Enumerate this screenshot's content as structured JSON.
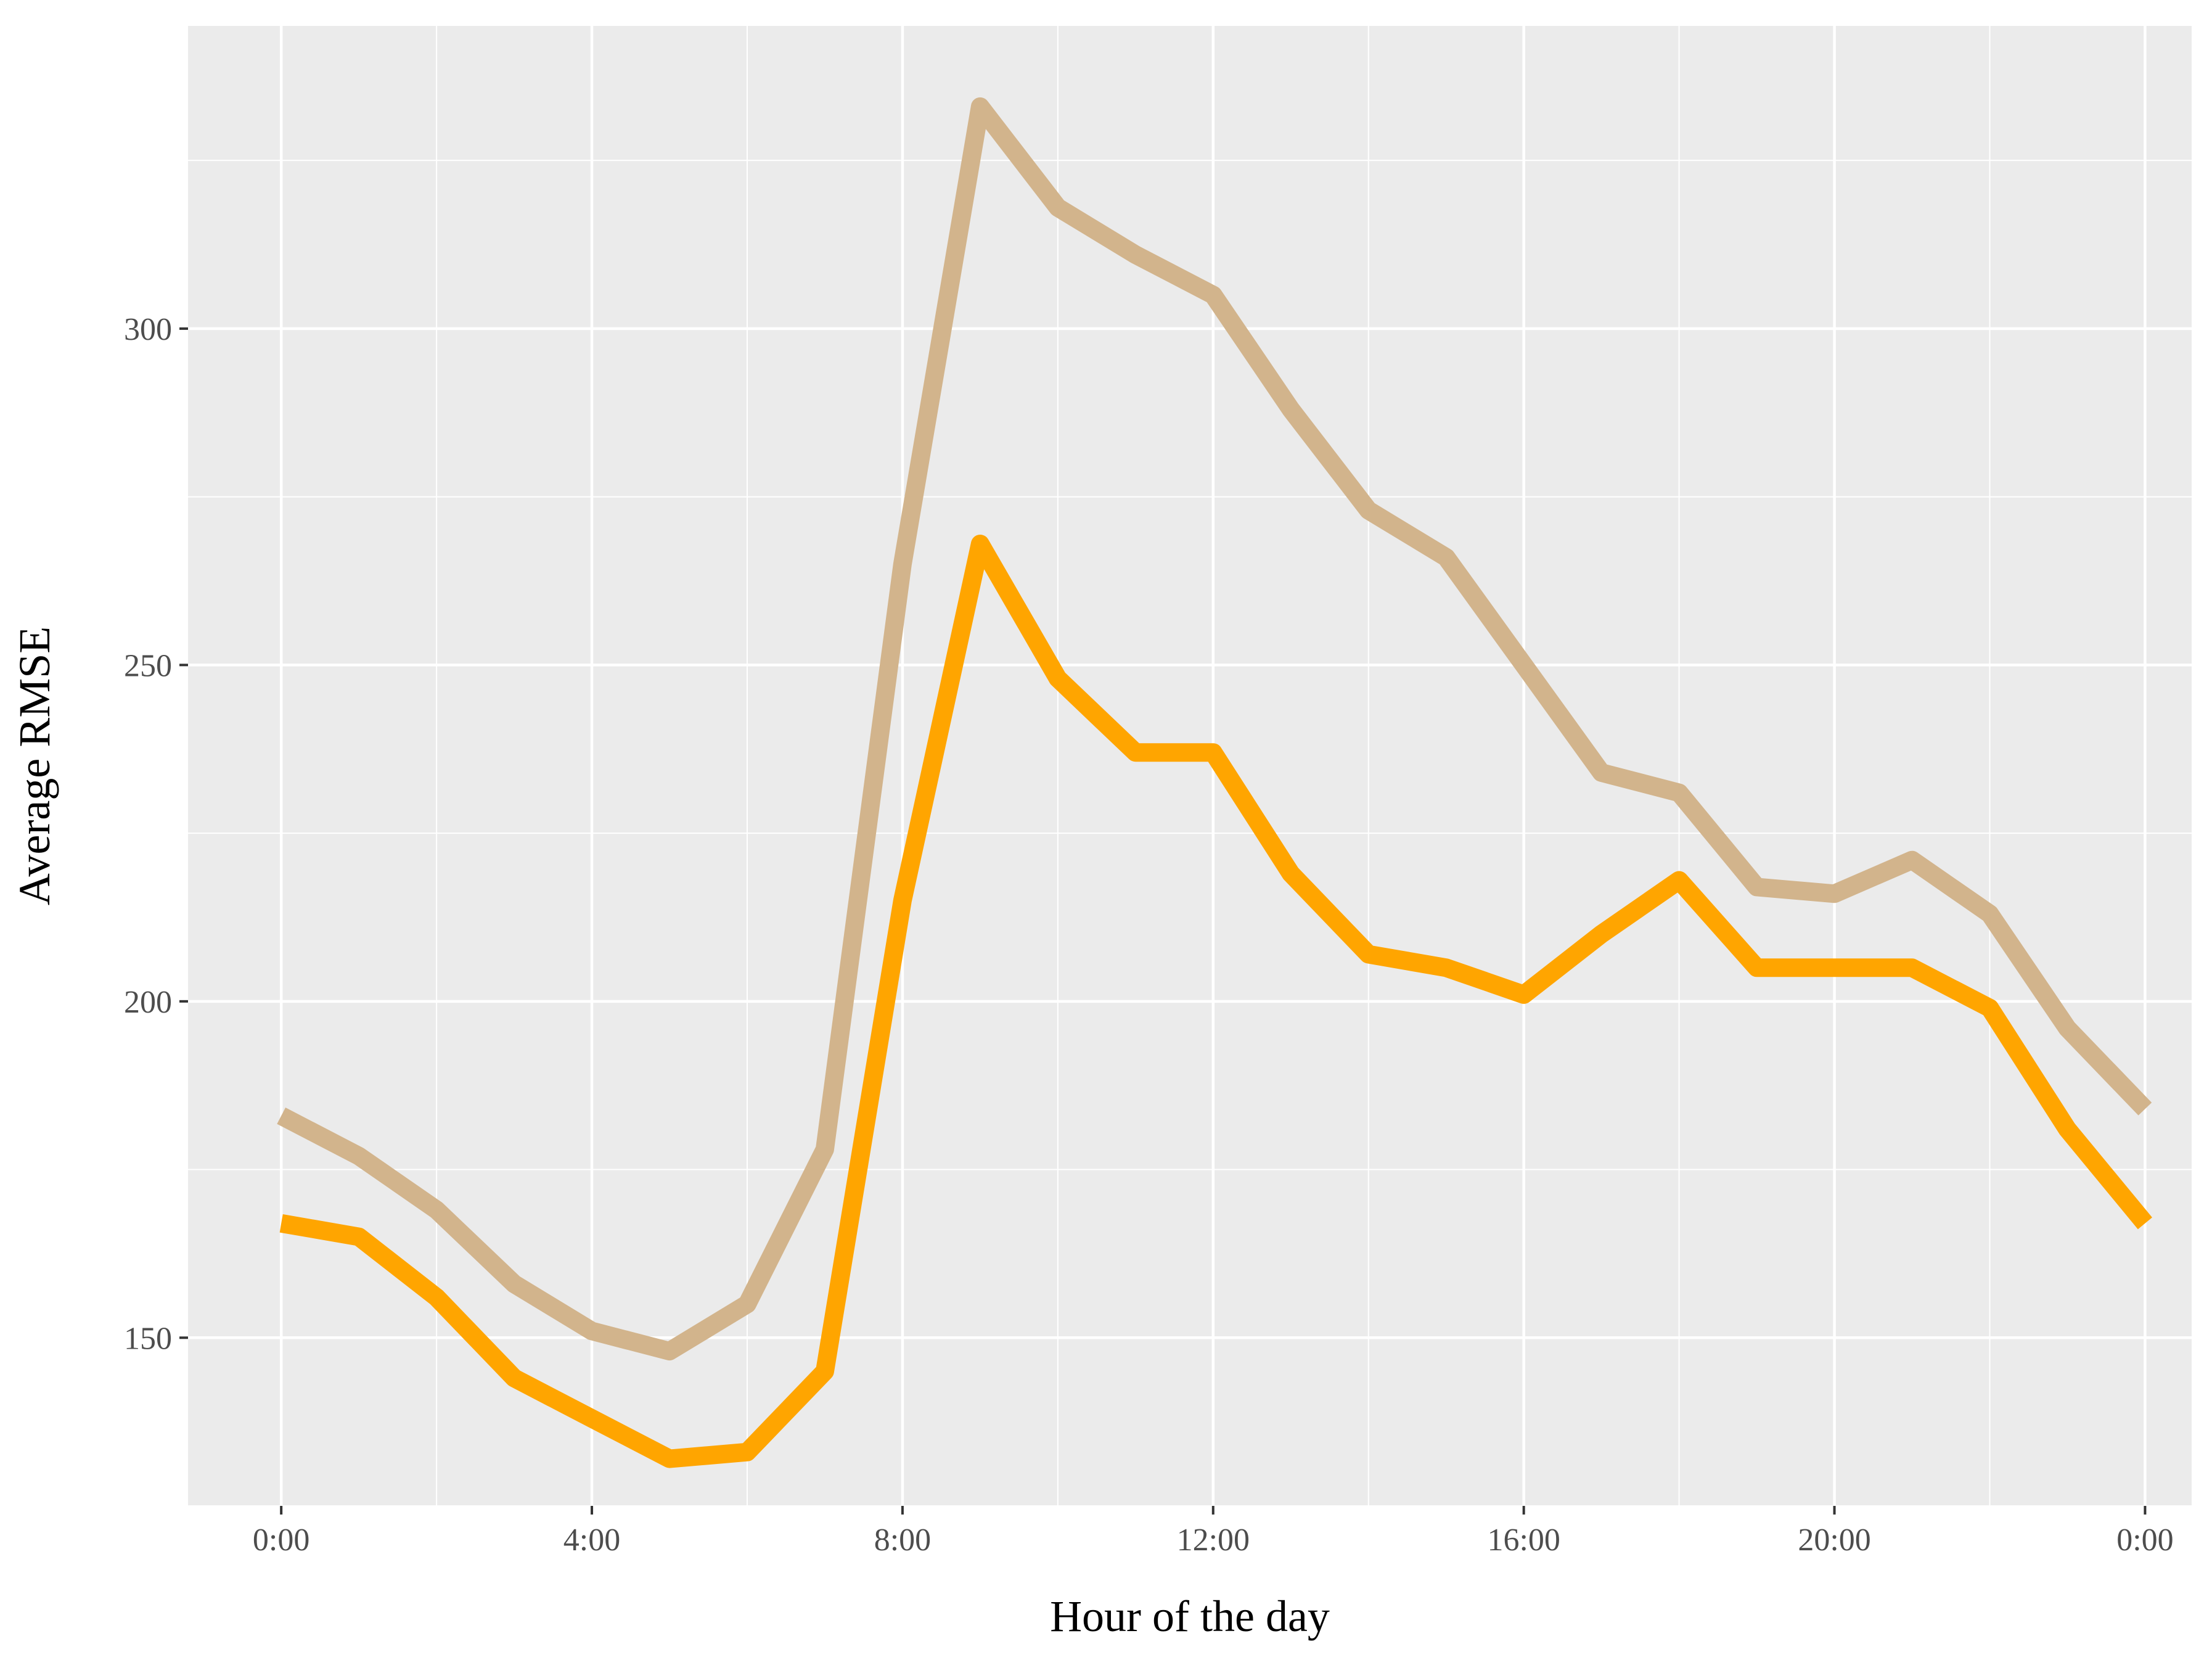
{
  "chart_data": {
    "type": "line",
    "title": "",
    "xlabel": "Hour of the day",
    "ylabel": "Average RMSE",
    "x": [
      0,
      1,
      2,
      3,
      4,
      5,
      6,
      7,
      8,
      9,
      10,
      11,
      12,
      13,
      14,
      15,
      16,
      17,
      18,
      19,
      20,
      21,
      22,
      23,
      24
    ],
    "x_ticks": [
      {
        "value": 0,
        "label": "0:00"
      },
      {
        "value": 4,
        "label": "4:00"
      },
      {
        "value": 8,
        "label": "8:00"
      },
      {
        "value": 12,
        "label": "12:00"
      },
      {
        "value": 16,
        "label": "16:00"
      },
      {
        "value": 20,
        "label": "20:00"
      },
      {
        "value": 24,
        "label": "0:00"
      }
    ],
    "y_ticks": [
      150,
      200,
      250,
      300
    ],
    "xlim": [
      -1.2,
      24.6
    ],
    "ylim": [
      125,
      345
    ],
    "grid": true,
    "legend": "none",
    "background": "#ebebeb",
    "series": [
      {
        "color": "#d2b48c",
        "values": [
          183,
          177,
          169,
          158,
          151,
          148,
          155,
          178,
          265,
          333,
          318,
          311,
          305,
          288,
          273,
          266,
          250,
          234,
          231,
          217,
          216,
          221,
          213,
          196,
          184
        ]
      },
      {
        "color": "#ffa500",
        "values": [
          167,
          165,
          156,
          144,
          138,
          132,
          133,
          145,
          215,
          268,
          248,
          237,
          237,
          219,
          207,
          205,
          201,
          210,
          218,
          205,
          205,
          205,
          199,
          181,
          167
        ]
      }
    ]
  }
}
